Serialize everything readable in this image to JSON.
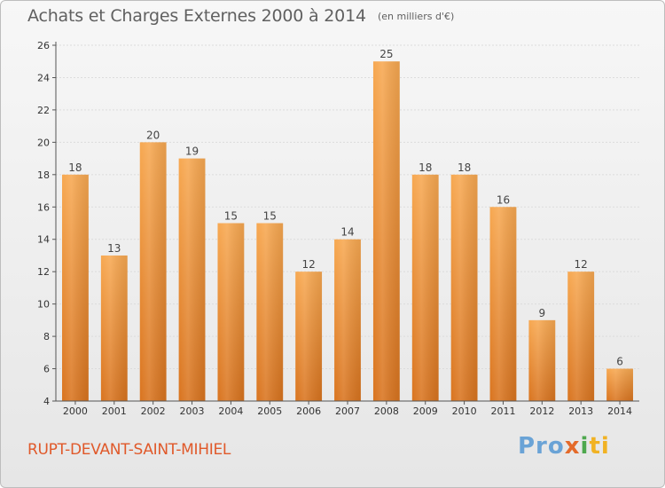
{
  "header": {
    "title": "Achats et Charges Externes 2000 à 2014",
    "subtitle": "(en milliers d'€)"
  },
  "footer": {
    "commune": "RUPT-DEVANT-SAINT-MIHIEL",
    "logo": [
      "Pro",
      "x",
      "i",
      "ti"
    ]
  },
  "colors": {
    "bar_top": "#f7a851",
    "bar_bottom": "#d9741f",
    "axis": "#555555",
    "grid": "#dcdcdc"
  },
  "chart_data": {
    "type": "bar",
    "title": "Achats et Charges Externes 2000 à 2014",
    "subtitle": "(en milliers d'€)",
    "xlabel": "",
    "ylabel": "",
    "categories": [
      "2000",
      "2001",
      "2002",
      "2003",
      "2004",
      "2005",
      "2006",
      "2007",
      "2008",
      "2009",
      "2010",
      "2011",
      "2012",
      "2013",
      "2014"
    ],
    "values": [
      18,
      13,
      20,
      19,
      15,
      15,
      12,
      14,
      25,
      18,
      18,
      16,
      9,
      12,
      6
    ],
    "ylim": [
      4,
      26
    ],
    "yticks": [
      4,
      6,
      8,
      10,
      12,
      14,
      16,
      18,
      20,
      22,
      24,
      26
    ],
    "grid": true,
    "legend": "none"
  }
}
